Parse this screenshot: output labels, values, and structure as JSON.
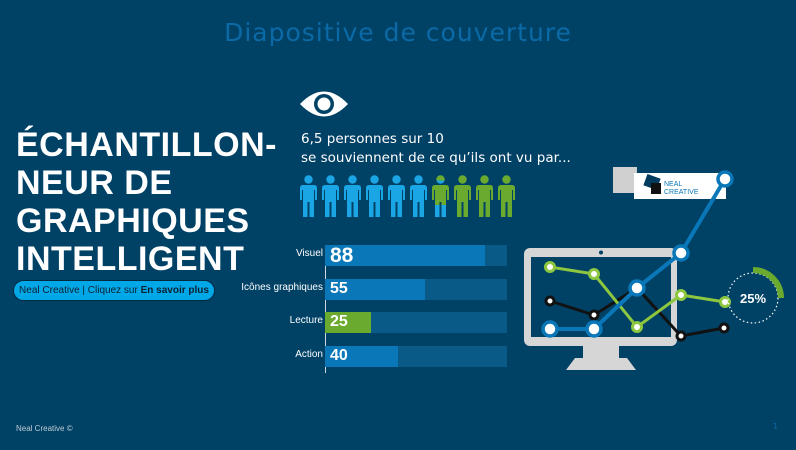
{
  "title": "Diapositive de couverture",
  "headline": [
    "ÉCHANTILLON-",
    "NEUR DE",
    "GRAPHIQUES",
    "INTELLIGENT"
  ],
  "cta": {
    "prefix": "Neal Creative | Cliquez sur ",
    "link": "En savoir plus"
  },
  "stat": {
    "line1": "6,5 personnes sur 10",
    "line2": "se souviennent de ce qu’ils ont vu par..."
  },
  "people": {
    "total": 10,
    "highlighted": 6.5
  },
  "bars": [
    {
      "label": "Visuel",
      "value": 88,
      "color": "#0a78b8"
    },
    {
      "label": "Icônes graphiques",
      "value": 55,
      "color": "#0a78b8"
    },
    {
      "label": "Lecture",
      "value": 25,
      "color": "#6aaa2e"
    },
    {
      "label": "Action",
      "value": 40,
      "color": "#0a78b8"
    }
  ],
  "ring": {
    "label": "25%",
    "value": 25
  },
  "logo": {
    "text1": "NEAL",
    "text2": "CREATIVE"
  },
  "footer": "Neal Creative ©",
  "page_number": "1"
}
